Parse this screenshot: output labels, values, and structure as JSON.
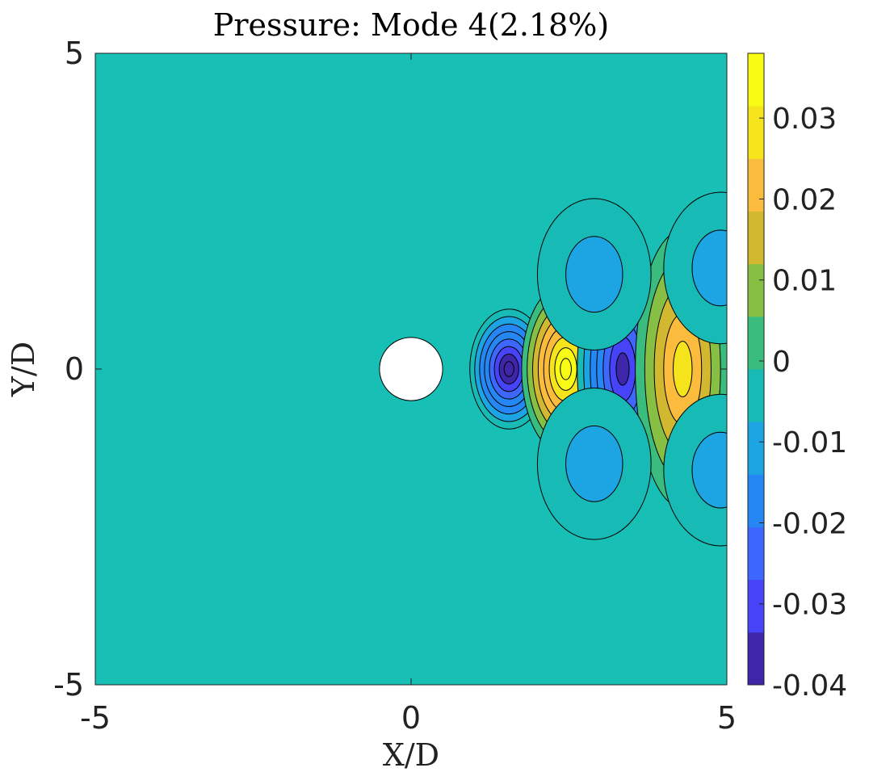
{
  "chart_data": {
    "type": "contour",
    "title": "Pressure: Mode 4(2.18%)",
    "xlabel": "X/D",
    "ylabel": "Y/D",
    "xlim": [
      -5,
      5
    ],
    "ylim": [
      -5,
      5
    ],
    "xticks": [
      -5,
      0,
      5
    ],
    "yticks": [
      -5,
      0,
      5
    ],
    "xtick_labels": [
      "-5",
      "0",
      "5"
    ],
    "ytick_labels": [
      "-5",
      "0",
      "5"
    ],
    "cylinder": {
      "center": [
        0,
        0
      ],
      "diameter": 1
    },
    "colorbar": {
      "range": [
        -0.04,
        0.038
      ],
      "ticks": [
        -0.04,
        -0.03,
        -0.02,
        -0.01,
        0,
        0.01,
        0.02,
        0.03
      ],
      "tick_labels": [
        "-0.04",
        "-0.03",
        "-0.02",
        "-0.01",
        "0",
        "0.01",
        "0.02",
        "0.03"
      ],
      "colormap": "parula",
      "colors": [
        "#3e26a8",
        "#4743f8",
        "#3e68fd",
        "#2487f3",
        "#1da4e2",
        "#17bab5",
        "#3bbc7f",
        "#87bf45",
        "#d2b831",
        "#fbbc3e",
        "#f5e41c",
        "#f9fb15"
      ]
    },
    "background_level_color": "#17bfb5",
    "contour_structures": [
      {
        "x": 1.55,
        "y": 0,
        "extremum": -0.04
      },
      {
        "x": 2.45,
        "y": 0,
        "extremum": 0.038
      },
      {
        "x": 3.35,
        "y": 0,
        "extremum": -0.035
      },
      {
        "x": 4.3,
        "y": 0,
        "extremum": 0.026
      },
      {
        "x": 2.9,
        "y": 1.5,
        "extremum": -0.009
      },
      {
        "x": 2.9,
        "y": -1.5,
        "extremum": -0.009
      },
      {
        "x": 4.9,
        "y": 1.6,
        "extremum": -0.009
      },
      {
        "x": 4.9,
        "y": -1.6,
        "extremum": -0.009
      }
    ]
  }
}
